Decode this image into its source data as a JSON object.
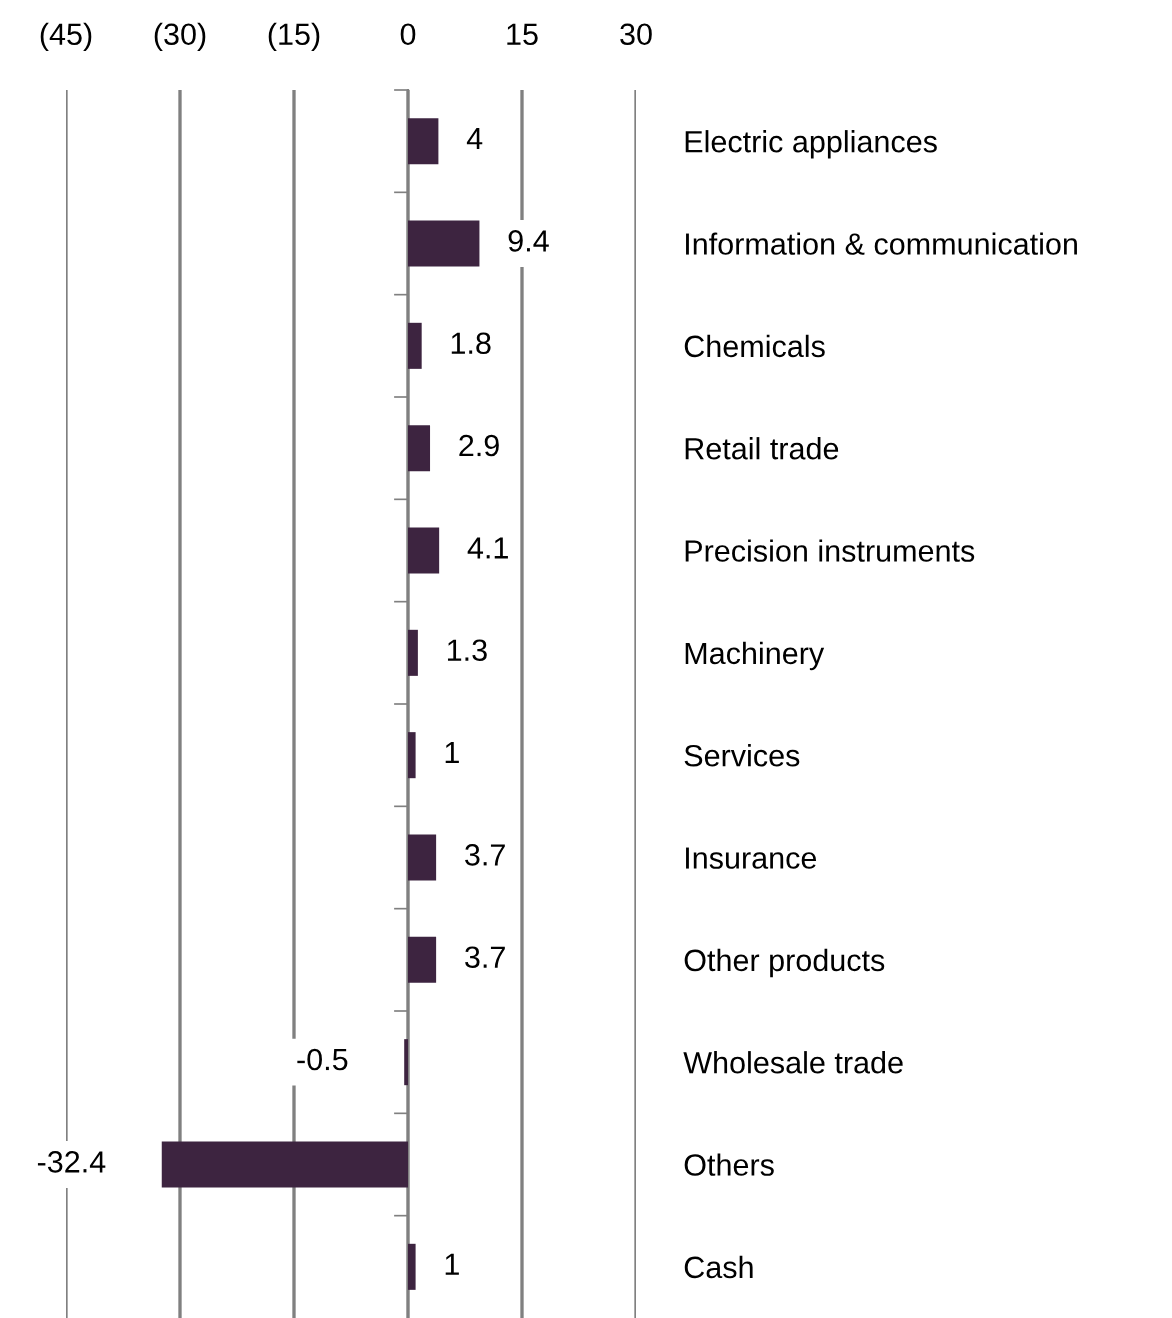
{
  "chart_data": {
    "type": "bar",
    "orientation": "horizontal",
    "categories": [
      "Electric appliances",
      "Information & communication",
      "Chemicals",
      "Retail trade",
      "Precision instruments",
      "Machinery",
      "Services",
      "Insurance",
      "Other products",
      "Wholesale trade",
      "Others",
      "Cash"
    ],
    "values": [
      4,
      9.4,
      1.8,
      2.9,
      4.1,
      1.3,
      1,
      3.7,
      3.7,
      -0.5,
      -32.4,
      1
    ],
    "color": "#3d2440",
    "xlim": [
      -45,
      30
    ],
    "xticks": [
      {
        "value": -45,
        "label": "(45)"
      },
      {
        "value": -30,
        "label": "(30)"
      },
      {
        "value": -15,
        "label": "(15)"
      },
      0,
      15,
      30
    ],
    "grid": "x",
    "data_labels": true
  }
}
